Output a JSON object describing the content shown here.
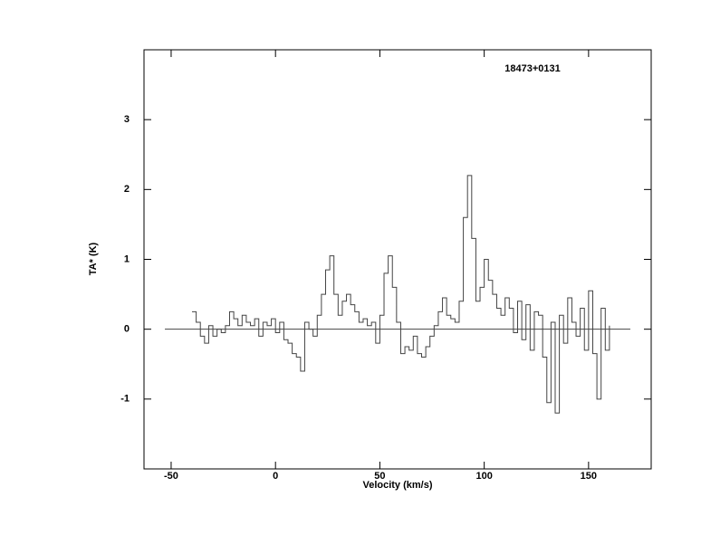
{
  "chart_data": {
    "type": "line",
    "title": "18473+0131",
    "x_label": "Velocity (km/s)",
    "y_label": "TA* (K)",
    "xlim": [
      -63,
      180
    ],
    "ylim": [
      -2,
      4
    ],
    "xticks": [
      -50,
      0,
      50,
      100,
      150
    ],
    "yticks": [
      -1,
      0,
      1,
      2,
      3
    ],
    "baseline": {
      "value": 0,
      "x": [
        -53,
        170
      ]
    },
    "step": true,
    "series": [
      {
        "color": "#444444",
        "x": [
          -40,
          -38,
          -36,
          -34,
          -32,
          -30,
          -28,
          -26,
          -24,
          -22,
          -20,
          -18,
          -16,
          -14,
          -12,
          -10,
          -8,
          -6,
          -4,
          -2,
          0,
          2,
          4,
          6,
          8,
          10,
          12,
          14,
          16,
          18,
          20,
          22,
          24,
          26,
          28,
          30,
          32,
          34,
          36,
          38,
          40,
          42,
          44,
          46,
          48,
          50,
          52,
          54,
          56,
          58,
          60,
          62,
          64,
          66,
          68,
          70,
          72,
          74,
          76,
          78,
          80,
          82,
          84,
          86,
          88,
          90,
          92,
          94,
          96,
          98,
          100,
          102,
          104,
          106,
          108,
          110,
          112,
          114,
          116,
          118,
          120,
          122,
          124,
          126,
          128,
          130,
          132,
          134,
          136,
          138,
          140,
          142,
          144,
          146,
          148,
          150,
          152,
          154,
          156,
          158,
          160
        ],
        "values": [
          0.25,
          0.1,
          -0.1,
          -0.2,
          0.05,
          -0.1,
          0.0,
          -0.05,
          0.05,
          0.25,
          0.15,
          0.05,
          0.2,
          0.1,
          0.05,
          0.15,
          -0.1,
          0.1,
          0.05,
          0.15,
          -0.05,
          0.1,
          -0.15,
          -0.2,
          -0.35,
          -0.4,
          -0.6,
          0.1,
          0.0,
          -0.1,
          0.2,
          0.5,
          0.85,
          1.05,
          0.5,
          0.2,
          0.4,
          0.5,
          0.35,
          0.25,
          0.1,
          0.15,
          0.05,
          0.1,
          -0.2,
          0.2,
          0.8,
          1.05,
          0.6,
          0.1,
          -0.35,
          -0.25,
          -0.3,
          -0.1,
          -0.35,
          -0.4,
          -0.25,
          -0.1,
          0.05,
          0.25,
          0.45,
          0.2,
          0.15,
          0.1,
          0.4,
          1.6,
          2.2,
          1.3,
          0.4,
          0.6,
          1.0,
          0.7,
          0.5,
          0.3,
          0.2,
          0.45,
          0.3,
          -0.05,
          0.4,
          -0.15,
          0.35,
          -0.3,
          0.25,
          0.2,
          -0.4,
          -1.05,
          0.1,
          -1.2,
          0.2,
          -0.2,
          0.45,
          0.1,
          -0.1,
          0.3,
          -0.3,
          0.55,
          -0.35,
          -1.0,
          0.3,
          -0.3,
          0.05
        ]
      }
    ]
  }
}
